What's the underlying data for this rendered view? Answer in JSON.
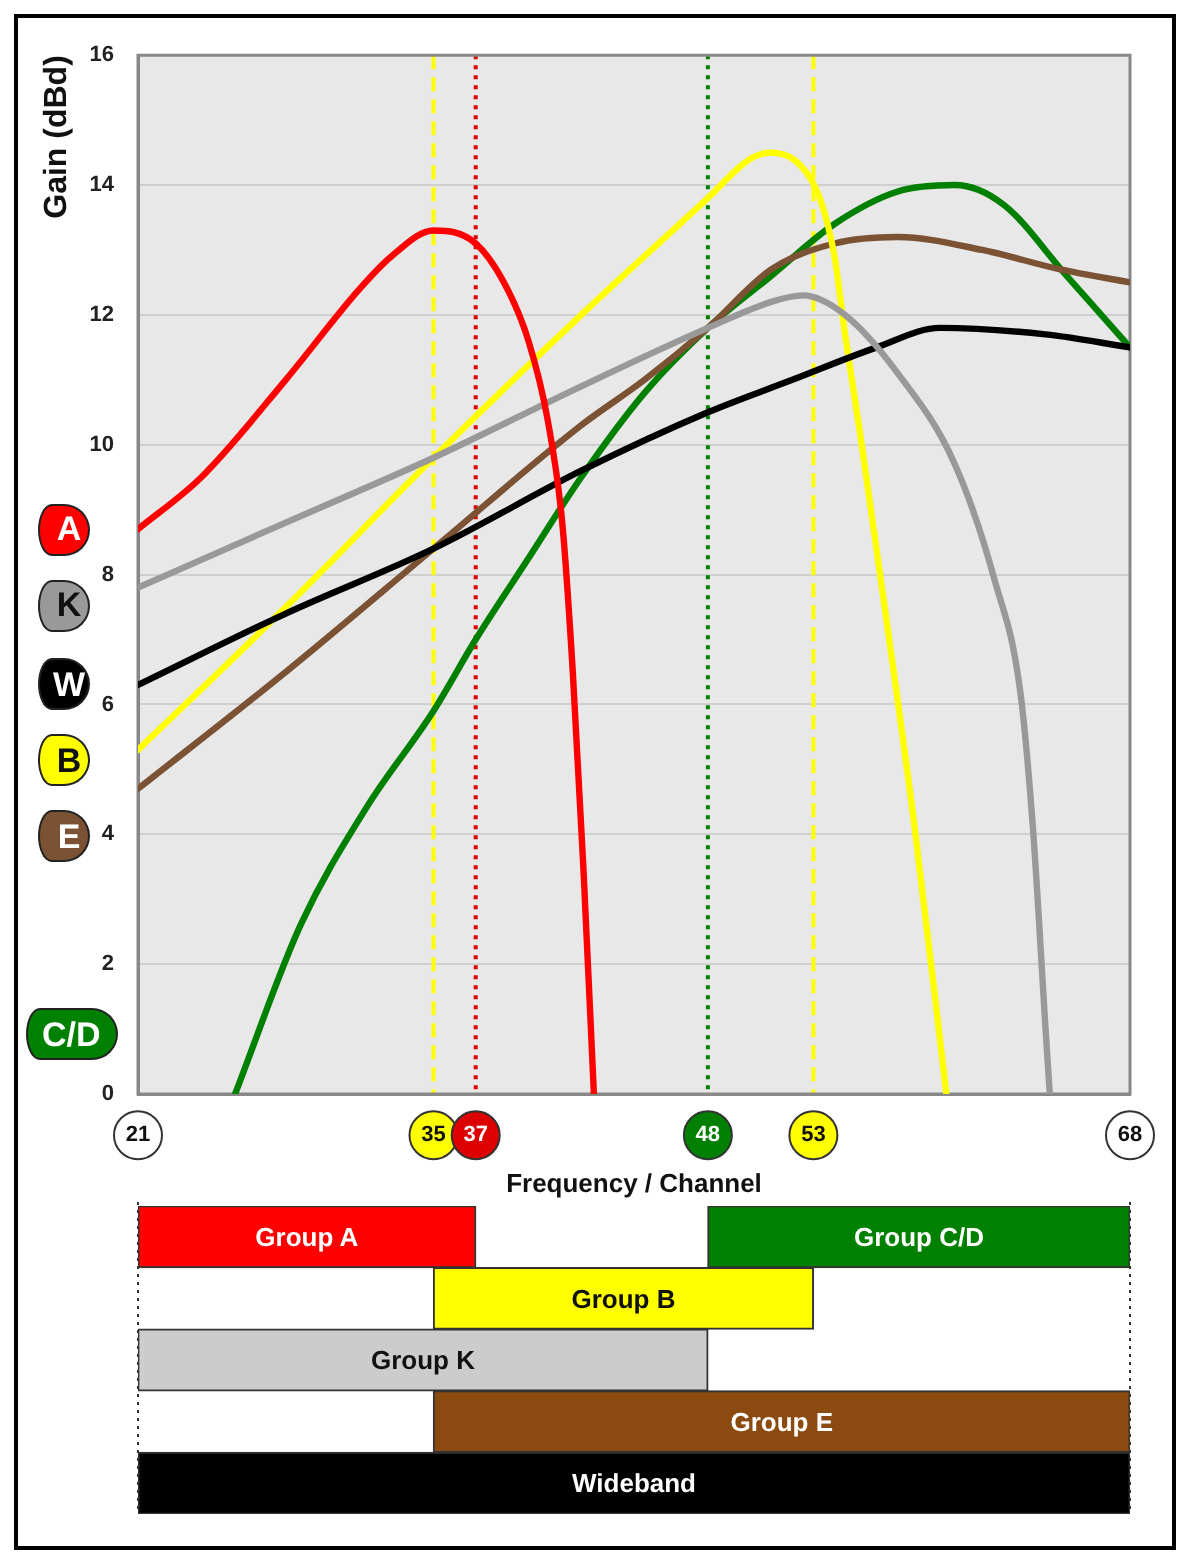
{
  "chart_data": [
    {
      "type": "line",
      "xlabel": "Frequency / Channel",
      "ylabel": "Gain (dBd)",
      "xlim": [
        21,
        68
      ],
      "xticks": [
        21,
        35,
        37,
        48,
        53,
        68
      ],
      "ylim": [
        0,
        16
      ],
      "yticks": [
        0,
        2,
        4,
        6,
        8,
        10,
        12,
        14,
        16
      ],
      "grid": "y",
      "legend": "left",
      "ref_lines": [
        {
          "axis": "x",
          "value": 35,
          "color": "#ffff00",
          "line_style": "dashed"
        },
        {
          "axis": "x",
          "value": 37,
          "color": "#dd0000",
          "line_style": "dotted"
        },
        {
          "axis": "x",
          "value": 48,
          "color": "#008000",
          "line_style": "dotted"
        },
        {
          "axis": "x",
          "value": 53,
          "color": "#ffff00",
          "line_style": "dashed"
        }
      ],
      "series": [
        {
          "name": "A",
          "color": "#ff0000",
          "x": [
            21,
            24,
            28,
            31.5,
            33,
            35,
            37,
            38.5,
            39.5,
            40.4,
            41.1,
            41.6,
            42.1,
            42.6
          ],
          "values": [
            8.7,
            9.5,
            11.0,
            12.4,
            12.9,
            13.3,
            13.1,
            12.4,
            11.6,
            10.4,
            8.8,
            6.5,
            3.5,
            0
          ]
        },
        {
          "name": "K",
          "color": "#999999",
          "x": [
            21,
            28,
            35,
            42,
            48,
            51,
            52.5,
            54.5,
            57,
            59.7,
            61.6,
            62.8,
            63.4,
            64,
            64.2
          ],
          "values": [
            7.8,
            8.8,
            9.8,
            10.9,
            11.8,
            12.2,
            12.3,
            12.0,
            11.1,
            9.7,
            7.9,
            6.2,
            4.1,
            1.0,
            0
          ]
        },
        {
          "name": "W",
          "color": "#000000",
          "x": [
            21,
            28,
            35,
            42,
            48,
            52,
            56,
            59,
            64,
            68
          ],
          "values": [
            6.3,
            7.4,
            8.4,
            9.6,
            10.5,
            11.0,
            11.5,
            11.8,
            11.7,
            11.5
          ]
        },
        {
          "name": "B",
          "color": "#ffff00",
          "x": [
            21,
            28,
            35,
            42,
            48,
            50,
            51,
            52.4,
            53.3,
            54,
            54.5,
            55.2,
            55.9,
            57.8,
            59.3
          ],
          "values": [
            5.3,
            7.5,
            9.8,
            12.0,
            13.8,
            14.4,
            14.5,
            14.3,
            13.8,
            12.9,
            11.7,
            10.2,
            8.6,
            4.1,
            0
          ]
        },
        {
          "name": "E",
          "color": "#7b5233",
          "x": [
            21,
            28,
            35,
            42,
            45,
            48,
            51,
            54,
            57,
            61,
            64.7,
            68
          ],
          "values": [
            4.7,
            6.5,
            8.4,
            10.3,
            11.0,
            11.8,
            12.7,
            13.1,
            13.2,
            13.0,
            12.7,
            12.5
          ]
        },
        {
          "name": "C/D",
          "color": "#008000",
          "x": [
            25.6,
            28.7,
            31.8,
            35,
            37,
            39.4,
            42,
            45,
            48,
            51,
            54,
            57,
            59.7,
            62,
            65,
            68
          ],
          "values": [
            0,
            2.6,
            4.4,
            5.9,
            7.0,
            8.2,
            9.5,
            10.8,
            11.8,
            12.6,
            13.4,
            13.9,
            14.0,
            13.7,
            12.6,
            11.5
          ]
        }
      ]
    },
    {
      "type": "bar",
      "orientation": "horizontal",
      "categories": [
        null,
        null,
        null,
        null,
        null
      ],
      "xlim": [
        21,
        68
      ],
      "xticks": [
        21,
        35,
        37,
        48,
        53,
        68
      ],
      "tick_labels": false,
      "series": [
        {
          "name": "Group A",
          "color": "#ff0000",
          "base": [
            21,
            null,
            null,
            null,
            null
          ],
          "values": [
            16,
            null,
            null,
            null,
            null
          ]
        },
        {
          "name": "Group C/D",
          "color": "#008000",
          "base": [
            48,
            null,
            null,
            null,
            null
          ],
          "values": [
            20,
            null,
            null,
            null,
            null
          ]
        },
        {
          "name": "Group B",
          "color": "#ffff00",
          "base": [
            null,
            35,
            null,
            null,
            null
          ],
          "values": [
            null,
            18,
            null,
            null,
            null
          ]
        },
        {
          "name": "Group K",
          "color": "#cccccc",
          "base": [
            null,
            null,
            21,
            null,
            null
          ],
          "values": [
            null,
            null,
            27,
            null,
            null
          ]
        },
        {
          "name": "Group E",
          "color": "#8b4a0f",
          "base": [
            null,
            null,
            null,
            35,
            null
          ],
          "values": [
            null,
            null,
            null,
            33,
            null
          ]
        },
        {
          "name": "Wideband",
          "color": "#000000",
          "base": [
            null,
            null,
            null,
            null,
            21
          ],
          "values": [
            null,
            null,
            null,
            null,
            47
          ]
        }
      ]
    }
  ]
}
